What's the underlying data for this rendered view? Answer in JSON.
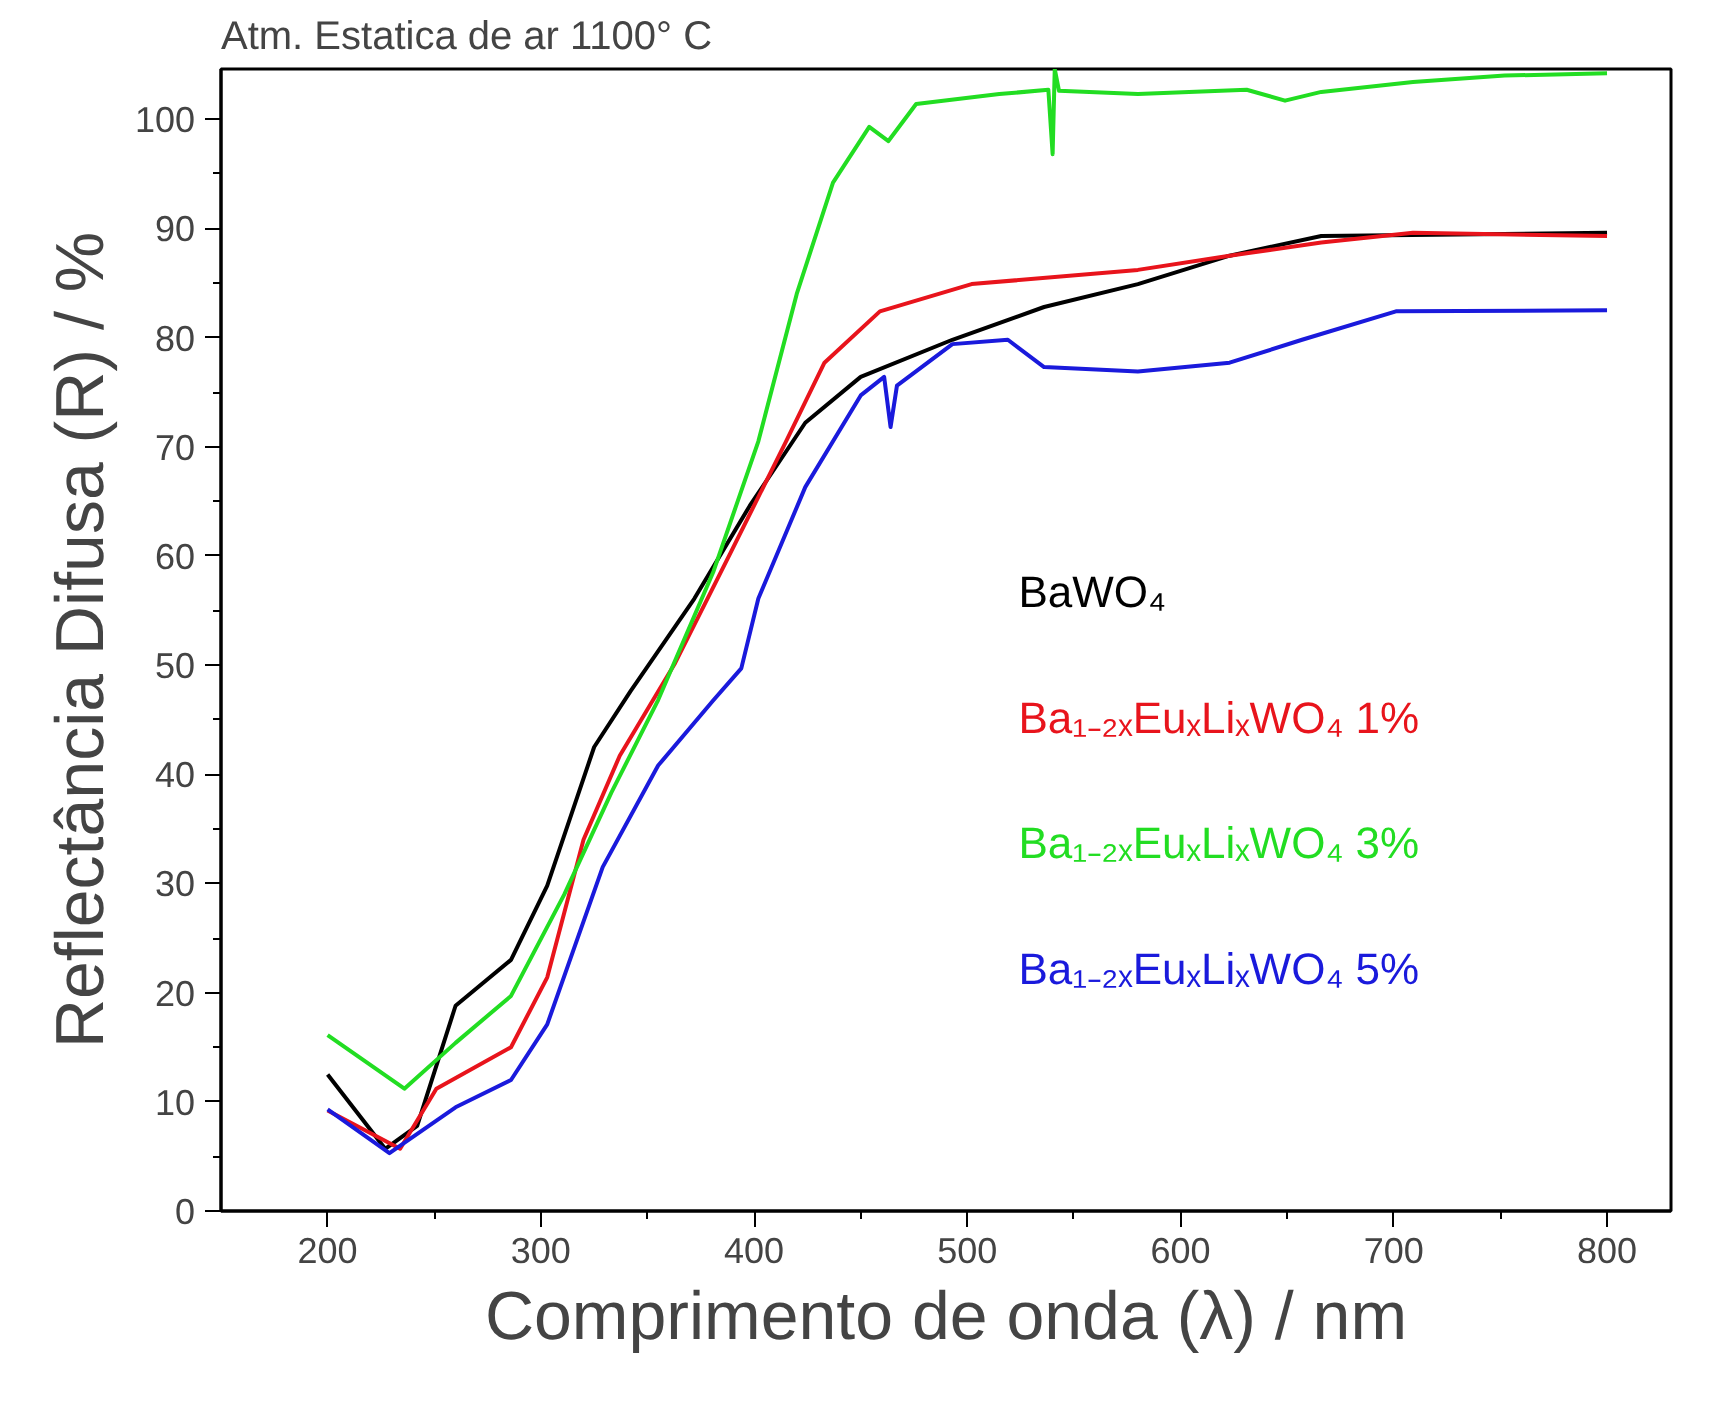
{
  "chart_data": {
    "type": "line",
    "title": "Atm. Estatica de ar 1100° C",
    "xlabel": "Comprimento de onda (λ) / nm",
    "ylabel": "Reflectância Difusa (R) / %",
    "xlim": [
      150,
      830
    ],
    "ylim": [
      0,
      104.6
    ],
    "xticks": [
      200,
      300,
      400,
      500,
      600,
      700,
      800
    ],
    "yticks": [
      0,
      10,
      20,
      30,
      40,
      50,
      60,
      70,
      80,
      90,
      100
    ],
    "grid": false,
    "legend": "right",
    "marker": "none",
    "line_style": "solid",
    "series": [
      {
        "name": "BaWO₄",
        "color": "#000000",
        "x": [
          200,
          227,
          242,
          260,
          286,
          303,
          325,
          342,
          372,
          398,
          424,
          450,
          493,
          536,
          580,
          623,
          666,
          800
        ],
        "values": [
          12.5,
          5.7,
          7.8,
          18.8,
          23,
          29.8,
          42.5,
          47.6,
          56.1,
          64.6,
          72.2,
          76.4,
          79.8,
          82.8,
          84.9,
          87.5,
          89.3,
          89.6
        ]
      },
      {
        "name": "Ba₁₋₂ₓEuₓLiₓWO₄ 1%",
        "color": "#e8141c",
        "x": [
          200,
          234,
          251,
          286,
          303,
          320,
          337,
          363,
          389,
          415,
          433,
          459,
          502,
          580,
          623,
          666,
          709,
          800
        ],
        "values": [
          9.2,
          5.7,
          11.2,
          15,
          21.4,
          34,
          41.7,
          50.2,
          60.3,
          70.5,
          77.7,
          82.4,
          84.9,
          86.2,
          87.5,
          88.7,
          89.6,
          89.3
        ]
      },
      {
        "name": "Ba₁₋₂ₓEuₓLiₓWO₄ 3%",
        "color": "#22dd22",
        "x": [
          200,
          236,
          260,
          286,
          311,
          333,
          355,
          381,
          402,
          420,
          437,
          454,
          463,
          476,
          515,
          538,
          540,
          541,
          543,
          580,
          631,
          649,
          666,
          709,
          752,
          800
        ],
        "values": [
          16.1,
          11.2,
          15.4,
          19.7,
          29,
          38.3,
          46.8,
          58.6,
          70.5,
          84,
          94.2,
          99.3,
          98,
          101.4,
          102.3,
          102.7,
          96.8,
          104.6,
          102.6,
          102.3,
          102.7,
          101.7,
          102.5,
          103.4,
          104,
          104.2
        ]
      },
      {
        "name": "Ba₁₋₂ₓEuₓLiₓWO₄ 5%",
        "color": "#1a1adc",
        "x": [
          200,
          229,
          260,
          286,
          303,
          329,
          355,
          381,
          394,
          402,
          424,
          450,
          461,
          464,
          467,
          493,
          519,
          536,
          580,
          623,
          657,
          701,
          800
        ],
        "values": [
          9.3,
          5.3,
          9.5,
          12,
          17.1,
          31.5,
          40.8,
          46.8,
          49.7,
          56.1,
          66.3,
          74.7,
          76.4,
          71.8,
          75.6,
          79.4,
          79.8,
          77.3,
          76.9,
          77.7,
          79.8,
          82.4,
          82.5
        ]
      }
    ]
  }
}
